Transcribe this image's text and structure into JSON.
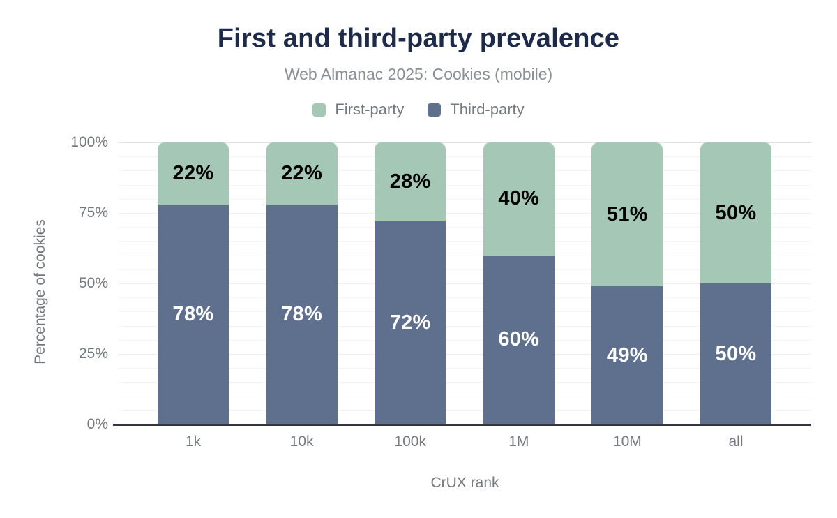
{
  "title": "First and third-party prevalence",
  "subtitle": "Web Almanac 2025: Cookies (mobile)",
  "legend": [
    {
      "label": "First-party",
      "color": "#a5c7b5"
    },
    {
      "label": "Third-party",
      "color": "#5e708e"
    }
  ],
  "chart_data": {
    "type": "bar",
    "stacked": true,
    "title": "First and third-party prevalence",
    "subtitle": "Web Almanac 2025: Cookies (mobile)",
    "categories": [
      "1k",
      "10k",
      "100k",
      "1M",
      "10M",
      "all"
    ],
    "series": [
      {
        "name": "First-party",
        "color": "#a5c7b5",
        "values": [
          22,
          22,
          28,
          40,
          51,
          50
        ]
      },
      {
        "name": "Third-party",
        "color": "#5e708e",
        "values": [
          78,
          78,
          72,
          60,
          49,
          50
        ]
      }
    ],
    "xlabel": "CrUX rank",
    "ylabel": "Percentage of cookies",
    "ylim": [
      0,
      100
    ],
    "yticks": [
      {
        "value": 0,
        "label": "0%"
      },
      {
        "value": 25,
        "label": "25%"
      },
      {
        "value": 50,
        "label": "50%"
      },
      {
        "value": 75,
        "label": "75%"
      },
      {
        "value": 100,
        "label": "100%"
      }
    ],
    "grid": "horizontal, minor lines every 5%",
    "legend_position": "top",
    "value_label_format": "{value}%"
  },
  "colors": {
    "background": "#ffffff",
    "title_text": "#1e2a49",
    "subtitle_text": "#8a8f94",
    "axis_text": "#75797d",
    "axis_line": "#33373d",
    "gridline": "#f4f4f4"
  }
}
